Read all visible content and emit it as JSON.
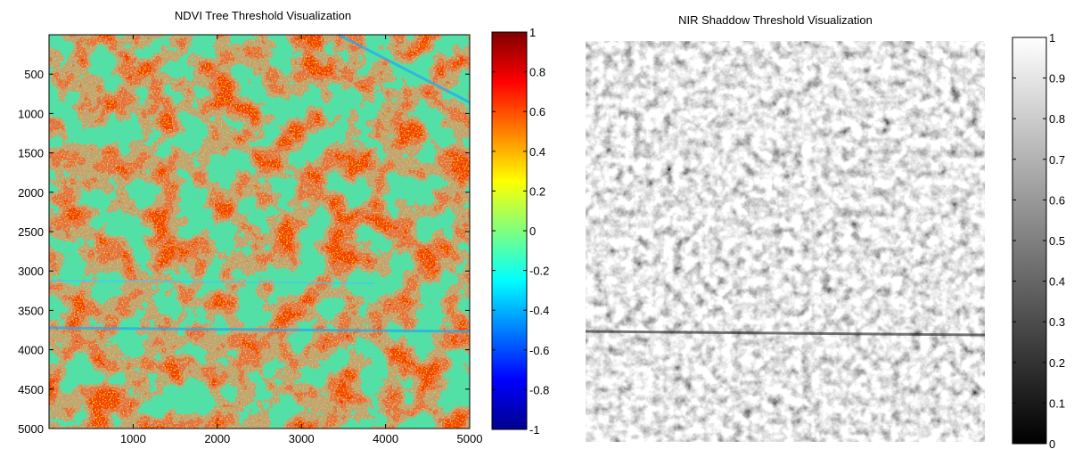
{
  "chart_data": [
    {
      "type": "heatmap",
      "title": "NDVI Tree Threshold Visualization",
      "xlabel": "",
      "ylabel": "",
      "xlim": [
        0,
        5000
      ],
      "ylim": [
        0,
        5000
      ],
      "y_direction": "down",
      "xticks": [
        1000,
        2000,
        3000,
        4000,
        5000
      ],
      "yticks": [
        500,
        1000,
        1500,
        2000,
        2500,
        3000,
        3500,
        4000,
        4500,
        5000
      ],
      "colormap": "jet",
      "colorbar": {
        "min": -1,
        "max": 1,
        "ticks": [
          -1,
          -0.8,
          -0.6,
          -0.4,
          -0.2,
          0,
          0.2,
          0.4,
          0.6,
          0.8,
          1
        ],
        "tick_labels": [
          "-1",
          "-0.8",
          "-0.6",
          "-0.4",
          "-0.2",
          "0",
          "0.2",
          "0.4",
          "0.6",
          "0.8",
          "1"
        ]
      }
    },
    {
      "type": "heatmap",
      "title": "NIR Shaddow Threshold Visualization",
      "xlabel": "",
      "ylabel": "",
      "axes_visible": false,
      "colormap": "gray",
      "colorbar": {
        "min": 0,
        "max": 1,
        "ticks": [
          0,
          0.1,
          0.2,
          0.3,
          0.4,
          0.5,
          0.6,
          0.7,
          0.8,
          0.9,
          1
        ],
        "tick_labels": [
          "0",
          "0.1",
          "0.2",
          "0.3",
          "0.4",
          "0.5",
          "0.6",
          "0.7",
          "0.8",
          "0.9",
          "1"
        ]
      }
    }
  ]
}
